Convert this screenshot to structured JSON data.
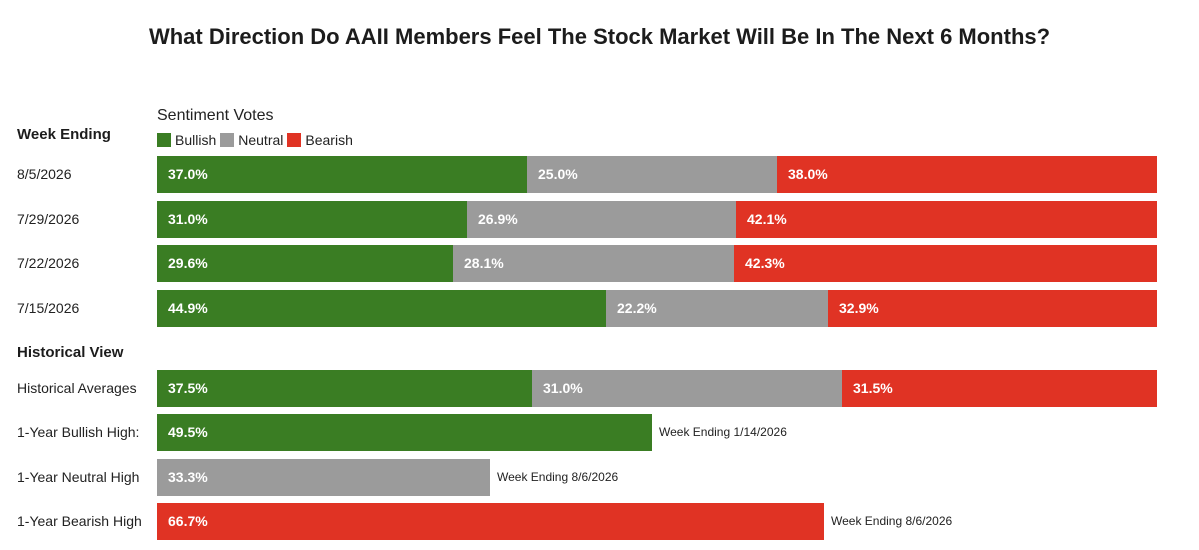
{
  "chart_data": {
    "type": "bar",
    "orientation": "horizontal",
    "stacked": true,
    "title": "What Direction Do AAII Members Feel The Stock Market Will Be In The Next 6 Months?",
    "legend_title": "Sentiment Votes",
    "legend_position": "top-left",
    "grid": false,
    "xlim": [
      0,
      100
    ],
    "series_meta": [
      {
        "name": "Bullish",
        "color": "#3a7d23"
      },
      {
        "name": "Neutral",
        "color": "#9b9b9b"
      },
      {
        "name": "Bearish",
        "color": "#e03324"
      }
    ],
    "week_header": "Week Ending",
    "weeks": [
      {
        "label": "8/5/2026",
        "values": [
          37.0,
          25.0,
          38.0
        ],
        "texts": [
          "37.0%",
          "25.0%",
          "38.0%"
        ]
      },
      {
        "label": "7/29/2026",
        "values": [
          31.0,
          26.9,
          42.1
        ],
        "texts": [
          "31.0%",
          "26.9%",
          "42.1%"
        ]
      },
      {
        "label": "7/22/2026",
        "values": [
          29.6,
          28.1,
          42.3
        ],
        "texts": [
          "29.6%",
          "28.1%",
          "42.3%"
        ]
      },
      {
        "label": "7/15/2026",
        "values": [
          44.9,
          22.2,
          32.9
        ],
        "texts": [
          "44.9%",
          "22.2%",
          "32.9%"
        ]
      }
    ],
    "historical_header": "Historical View",
    "historical_average": {
      "label": "Historical Averages",
      "values": [
        37.5,
        31.0,
        31.5
      ],
      "texts": [
        "37.5%",
        "31.0%",
        "31.5%"
      ]
    },
    "highs": [
      {
        "label": "1-Year Bullish High:",
        "series": 0,
        "value": 49.5,
        "text": "49.5%",
        "note": "Week Ending 1/14/2026"
      },
      {
        "label": "1-Year Neutral High",
        "series": 1,
        "value": 33.3,
        "text": "33.3%",
        "note": "Week Ending 8/6/2026"
      },
      {
        "label": "1-Year Bearish High",
        "series": 2,
        "value": 66.7,
        "text": "66.7%",
        "note": "Week Ending 8/6/2026"
      }
    ]
  }
}
